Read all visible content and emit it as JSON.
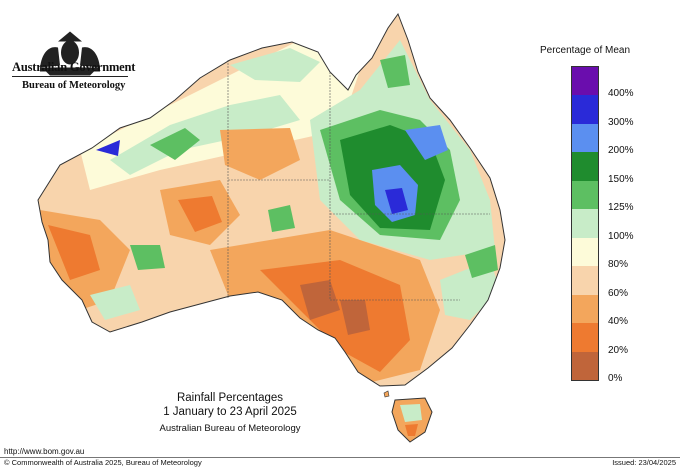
{
  "header": {
    "government": "Australian Government",
    "bureau": "Bureau of Meteorology"
  },
  "legend": {
    "title": "Percentage of Mean",
    "classes": [
      {
        "label": "400%",
        "color": "#6a0dad"
      },
      {
        "label": "300%",
        "color": "#2a2ad8"
      },
      {
        "label": "200%",
        "color": "#5b8ff0"
      },
      {
        "label": "150%",
        "color": "#1f8c2e"
      },
      {
        "label": "125%",
        "color": "#5dbf62"
      },
      {
        "label": "100%",
        "color": "#c8ecc8"
      },
      {
        "label": "80%",
        "color": "#fdfbd9"
      },
      {
        "label": "60%",
        "color": "#f8d4ac"
      },
      {
        "label": "40%",
        "color": "#f3a65c"
      },
      {
        "label": "20%",
        "color": "#ee7a30"
      },
      {
        "label": "0%",
        "color": "#c0653a"
      }
    ]
  },
  "map": {
    "title": "Rainfall Percentages",
    "subtitle": "1 January to 23 April 2025",
    "organisation": "Australian Bureau of Meteorology"
  },
  "footer": {
    "url": "http://www.bom.gov.au",
    "copyright": "© Commonwealth of Australia 2025, Bureau of Meteorology",
    "issued": "Issued: 23/04/2025"
  }
}
